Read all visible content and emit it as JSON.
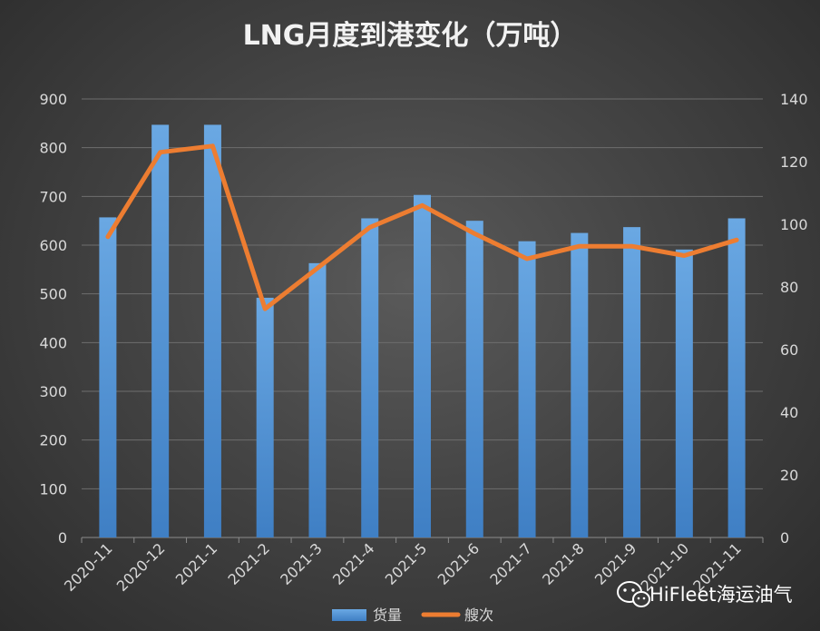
{
  "chart_data": {
    "type": "bar",
    "title": "LNG月度到港变化（万吨）",
    "categories": [
      "2020-11",
      "2020-12",
      "2021-1",
      "2021-2",
      "2021-3",
      "2021-4",
      "2021-5",
      "2021-6",
      "2021-7",
      "2021-8",
      "2021-9",
      "2021-10",
      "2021-11"
    ],
    "series": [
      {
        "name": "货量",
        "type": "bar",
        "axis": "left",
        "color": "#5b9bd5",
        "values": [
          657,
          847,
          847,
          492,
          563,
          655,
          703,
          650,
          608,
          625,
          637,
          591,
          655
        ]
      },
      {
        "name": "艘次",
        "type": "line",
        "axis": "right",
        "color": "#ed7d31",
        "values": [
          96,
          123,
          125,
          73,
          86,
          99,
          106,
          97,
          89,
          93,
          93,
          90,
          95
        ]
      }
    ],
    "ylim_left": [
      0,
      900
    ],
    "yticks_left": [
      "0",
      "100",
      "200",
      "300",
      "400",
      "500",
      "600",
      "700",
      "800",
      "900"
    ],
    "ylim_right": [
      0,
      140
    ],
    "yticks_right": [
      "0",
      "20",
      "40",
      "60",
      "80",
      "100",
      "120",
      "140"
    ],
    "grid": true,
    "legend_position": "bottom"
  },
  "watermark": {
    "text": "HiFleet海运油气",
    "icon": "wechat-icon"
  }
}
